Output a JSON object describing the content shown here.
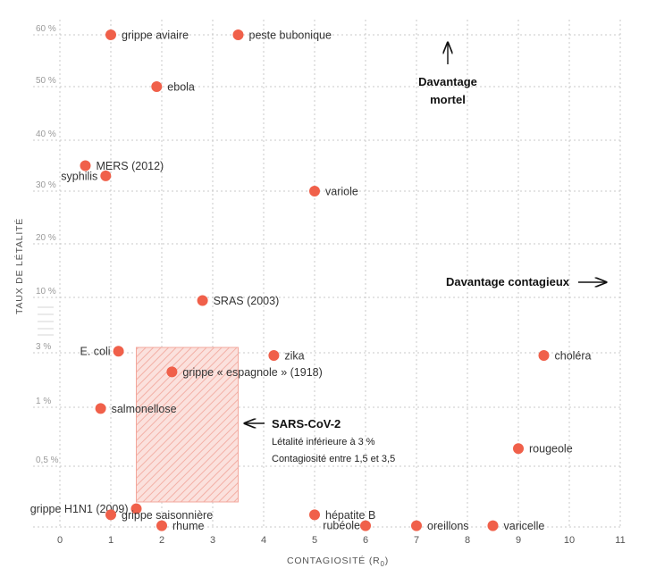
{
  "chart_data": {
    "type": "scatter",
    "title": "",
    "xlabel": "CONTAGIOSITÉ (R",
    "xlabel_sub": "0",
    "xlabel_close": ")",
    "ylabel": "TAUX DE LÉTALITÉ",
    "xlim": [
      0,
      11
    ],
    "x_ticks": [
      "0",
      "1",
      "2",
      "3",
      "4",
      "5",
      "6",
      "7",
      "8",
      "9",
      "10",
      "11"
    ],
    "y_scale": "piecewise (non-linear)",
    "y_ticks": [
      "60 %",
      "50 %",
      "40 %",
      "30 %",
      "20 %",
      "10 %",
      "3 %",
      "1 %",
      "0,5 %"
    ],
    "grid": true,
    "colors": {
      "point": "#f0604a",
      "band": "#f4a59b",
      "grid": "#c8c8c8"
    },
    "points": [
      {
        "name": "grippe aviaire",
        "x": 1.0,
        "y": 60
      },
      {
        "name": "peste bubonique",
        "x": 3.5,
        "y": 60
      },
      {
        "name": "ebola",
        "x": 1.9,
        "y": 50
      },
      {
        "name": "MERS (2012)",
        "x": 0.5,
        "y": 35
      },
      {
        "name": "syphilis",
        "x": 0.9,
        "y": 33
      },
      {
        "name": "variole",
        "x": 5.0,
        "y": 30
      },
      {
        "name": "SRAS (2003)",
        "x": 2.8,
        "y": 9.6
      },
      {
        "name": "E. coli",
        "x": 1.15,
        "y": 3.2
      },
      {
        "name": "zika",
        "x": 4.2,
        "y": 2.9
      },
      {
        "name": "choléra",
        "x": 9.5,
        "y": 2.9
      },
      {
        "name": "grippe « espagnole » (1918)",
        "x": 2.2,
        "y": 2.3
      },
      {
        "name": "salmonellose",
        "x": 0.8,
        "y": 0.99
      },
      {
        "name": "rougeole",
        "x": 9.0,
        "y": 0.65
      },
      {
        "name": "grippe H1N1 (2009)",
        "x": 1.5,
        "y": 0.15
      },
      {
        "name": "grippe saisonnière",
        "x": 1.0,
        "y": 0.1
      },
      {
        "name": "rhume",
        "x": 2.0,
        "y": 0.01
      },
      {
        "name": "hépatite B",
        "x": 5.0,
        "y": 0.1
      },
      {
        "name": "rubéole",
        "x": 6.0,
        "y": 0.01
      },
      {
        "name": "oreillons",
        "x": 7.0,
        "y": 0.01
      },
      {
        "name": "varicelle",
        "x": 8.5,
        "y": 0.01
      }
    ],
    "annotations": {
      "more_deadly": [
        "Davantage",
        "mortel"
      ],
      "more_contagious": "Davantage contagieux",
      "sars_title": "SARS-CoV-2",
      "sars_line1": "Létalité inférieure à 3 %",
      "sars_line2": "Contagiosité entre 1,5 et 3,5"
    },
    "sars_region": {
      "x_min": 1.5,
      "x_max": 3.5,
      "y_max": 3
    }
  }
}
